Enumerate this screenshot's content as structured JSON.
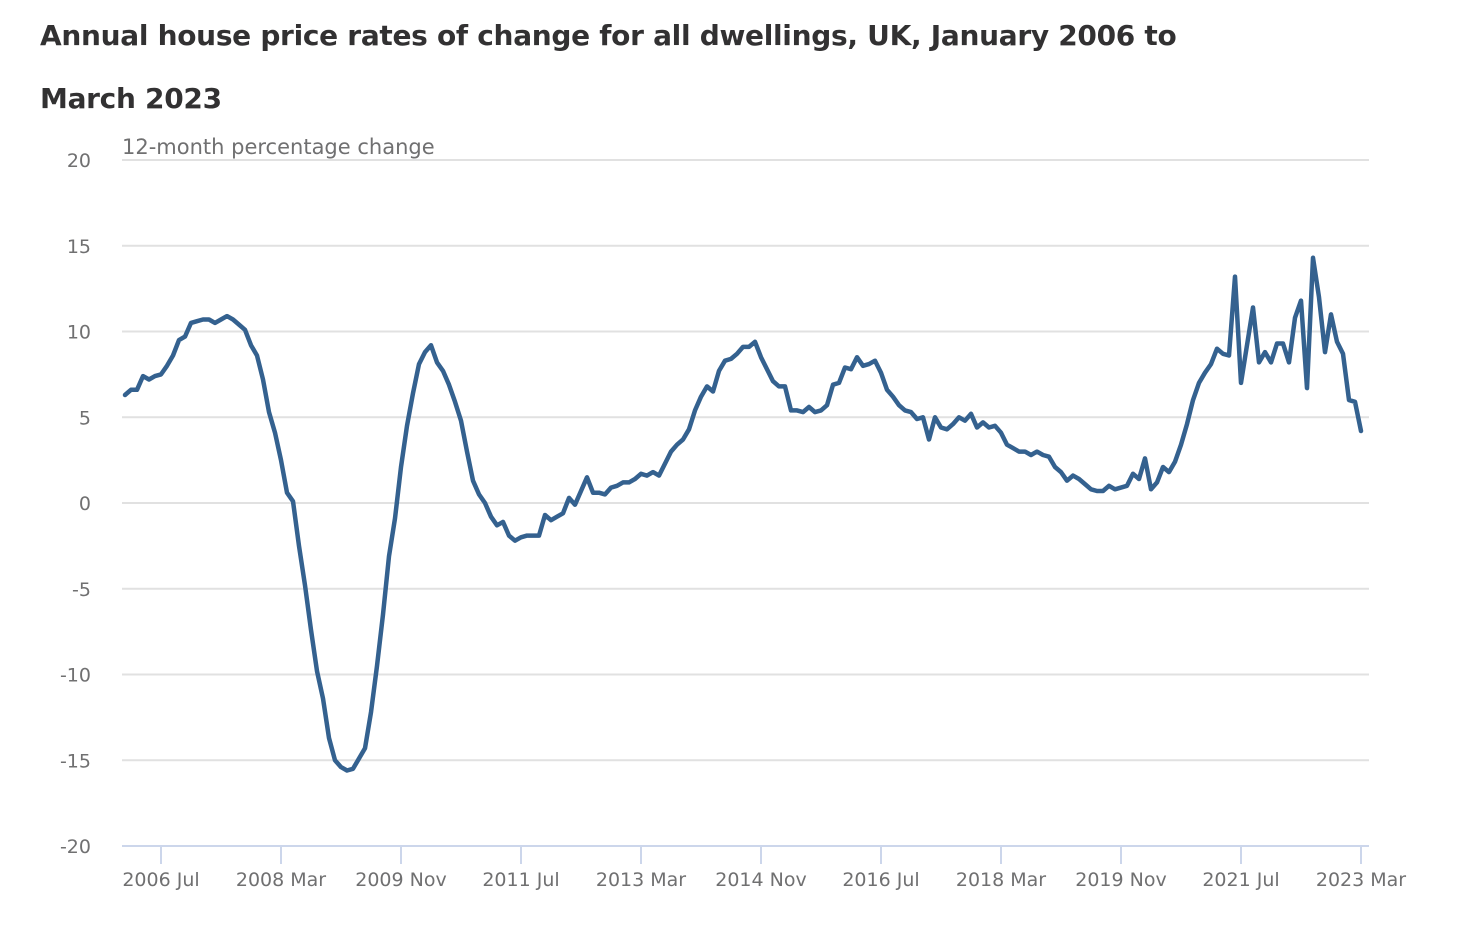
{
  "chart_data": {
    "type": "line",
    "title": "Annual house price rates of change for all dwellings, UK, January 2006 to March 2023",
    "ylabel": "12-month percentage change",
    "xlabel": "",
    "ylim": [
      -20,
      20
    ],
    "yticks": [
      20,
      15,
      10,
      5,
      0,
      -5,
      -10,
      -15,
      -20
    ],
    "x_start": "2006 Jan",
    "x_end": "2023 Mar",
    "xticks": [
      {
        "label": "2006 Jul",
        "month_index": 6
      },
      {
        "label": "2008 Mar",
        "month_index": 26
      },
      {
        "label": "2009 Nov",
        "month_index": 46
      },
      {
        "label": "2011 Jul",
        "month_index": 66
      },
      {
        "label": "2013 Mar",
        "month_index": 86
      },
      {
        "label": "2014 Nov",
        "month_index": 106
      },
      {
        "label": "2016 Jul",
        "month_index": 126
      },
      {
        "label": "2018 Mar",
        "month_index": 146
      },
      {
        "label": "2019 Nov",
        "month_index": 166
      },
      {
        "label": "2021 Jul",
        "month_index": 186
      },
      {
        "label": "2023 Mar",
        "month_index": 206
      }
    ],
    "grid": true,
    "line_color": "#34618f",
    "series": [
      {
        "name": "12-month percentage change",
        "values": [
          6.3,
          6.6,
          6.6,
          7.4,
          7.2,
          7.4,
          7.5,
          8.0,
          8.6,
          9.5,
          9.7,
          10.5,
          10.6,
          10.7,
          10.7,
          10.5,
          10.7,
          10.9,
          10.7,
          10.4,
          10.1,
          9.2,
          8.6,
          7.2,
          5.3,
          4.1,
          2.5,
          0.6,
          0.1,
          -2.5,
          -4.8,
          -7.4,
          -9.8,
          -11.4,
          -13.7,
          -15.0,
          -15.4,
          -15.6,
          -15.5,
          -14.9,
          -14.3,
          -12.2,
          -9.5,
          -6.5,
          -3.1,
          -0.9,
          2.1,
          4.5,
          6.4,
          8.1,
          8.8,
          9.2,
          8.2,
          7.7,
          6.9,
          5.9,
          4.8,
          3.0,
          1.3,
          0.5,
          0.0,
          -0.8,
          -1.3,
          -1.1,
          -1.9,
          -2.2,
          -2.0,
          -1.9,
          -1.9,
          -1.9,
          -0.7,
          -1.0,
          -0.8,
          -0.6,
          0.3,
          -0.1,
          0.7,
          1.5,
          0.6,
          0.6,
          0.5,
          0.9,
          1.0,
          1.2,
          1.2,
          1.4,
          1.7,
          1.6,
          1.8,
          1.6,
          2.3,
          3.0,
          3.4,
          3.7,
          4.3,
          5.4,
          6.2,
          6.8,
          6.5,
          7.7,
          8.3,
          8.4,
          8.7,
          9.1,
          9.1,
          9.4,
          8.5,
          7.8,
          7.1,
          6.8,
          6.8,
          5.4,
          5.4,
          5.3,
          5.6,
          5.3,
          5.4,
          5.7,
          6.9,
          7.0,
          7.9,
          7.8,
          8.5,
          8.0,
          8.1,
          8.3,
          7.6,
          6.6,
          6.2,
          5.7,
          5.4,
          5.3,
          4.9,
          5.0,
          3.7,
          5.0,
          4.4,
          4.3,
          4.6,
          5.0,
          4.8,
          5.2,
          4.4,
          4.7,
          4.4,
          4.5,
          4.1,
          3.4,
          3.2,
          3.0,
          3.0,
          2.8,
          3.0,
          2.8,
          2.7,
          2.1,
          1.8,
          1.3,
          1.6,
          1.4,
          1.1,
          0.8,
          0.7,
          0.7,
          1.0,
          0.8,
          0.9,
          1.0,
          1.7,
          1.4,
          2.6,
          0.8,
          1.2,
          2.1,
          1.8,
          2.4,
          3.4,
          4.6,
          6.0,
          7.0,
          7.6,
          8.1,
          9.0,
          8.7,
          8.6,
          13.2,
          7.0,
          9.2,
          11.4,
          8.2,
          8.8,
          8.2,
          9.3,
          9.3,
          8.2,
          10.8,
          11.8,
          6.7,
          14.3,
          12.0,
          8.8,
          11.0,
          9.4,
          8.7,
          6.0,
          5.9,
          4.2
        ]
      }
    ]
  }
}
